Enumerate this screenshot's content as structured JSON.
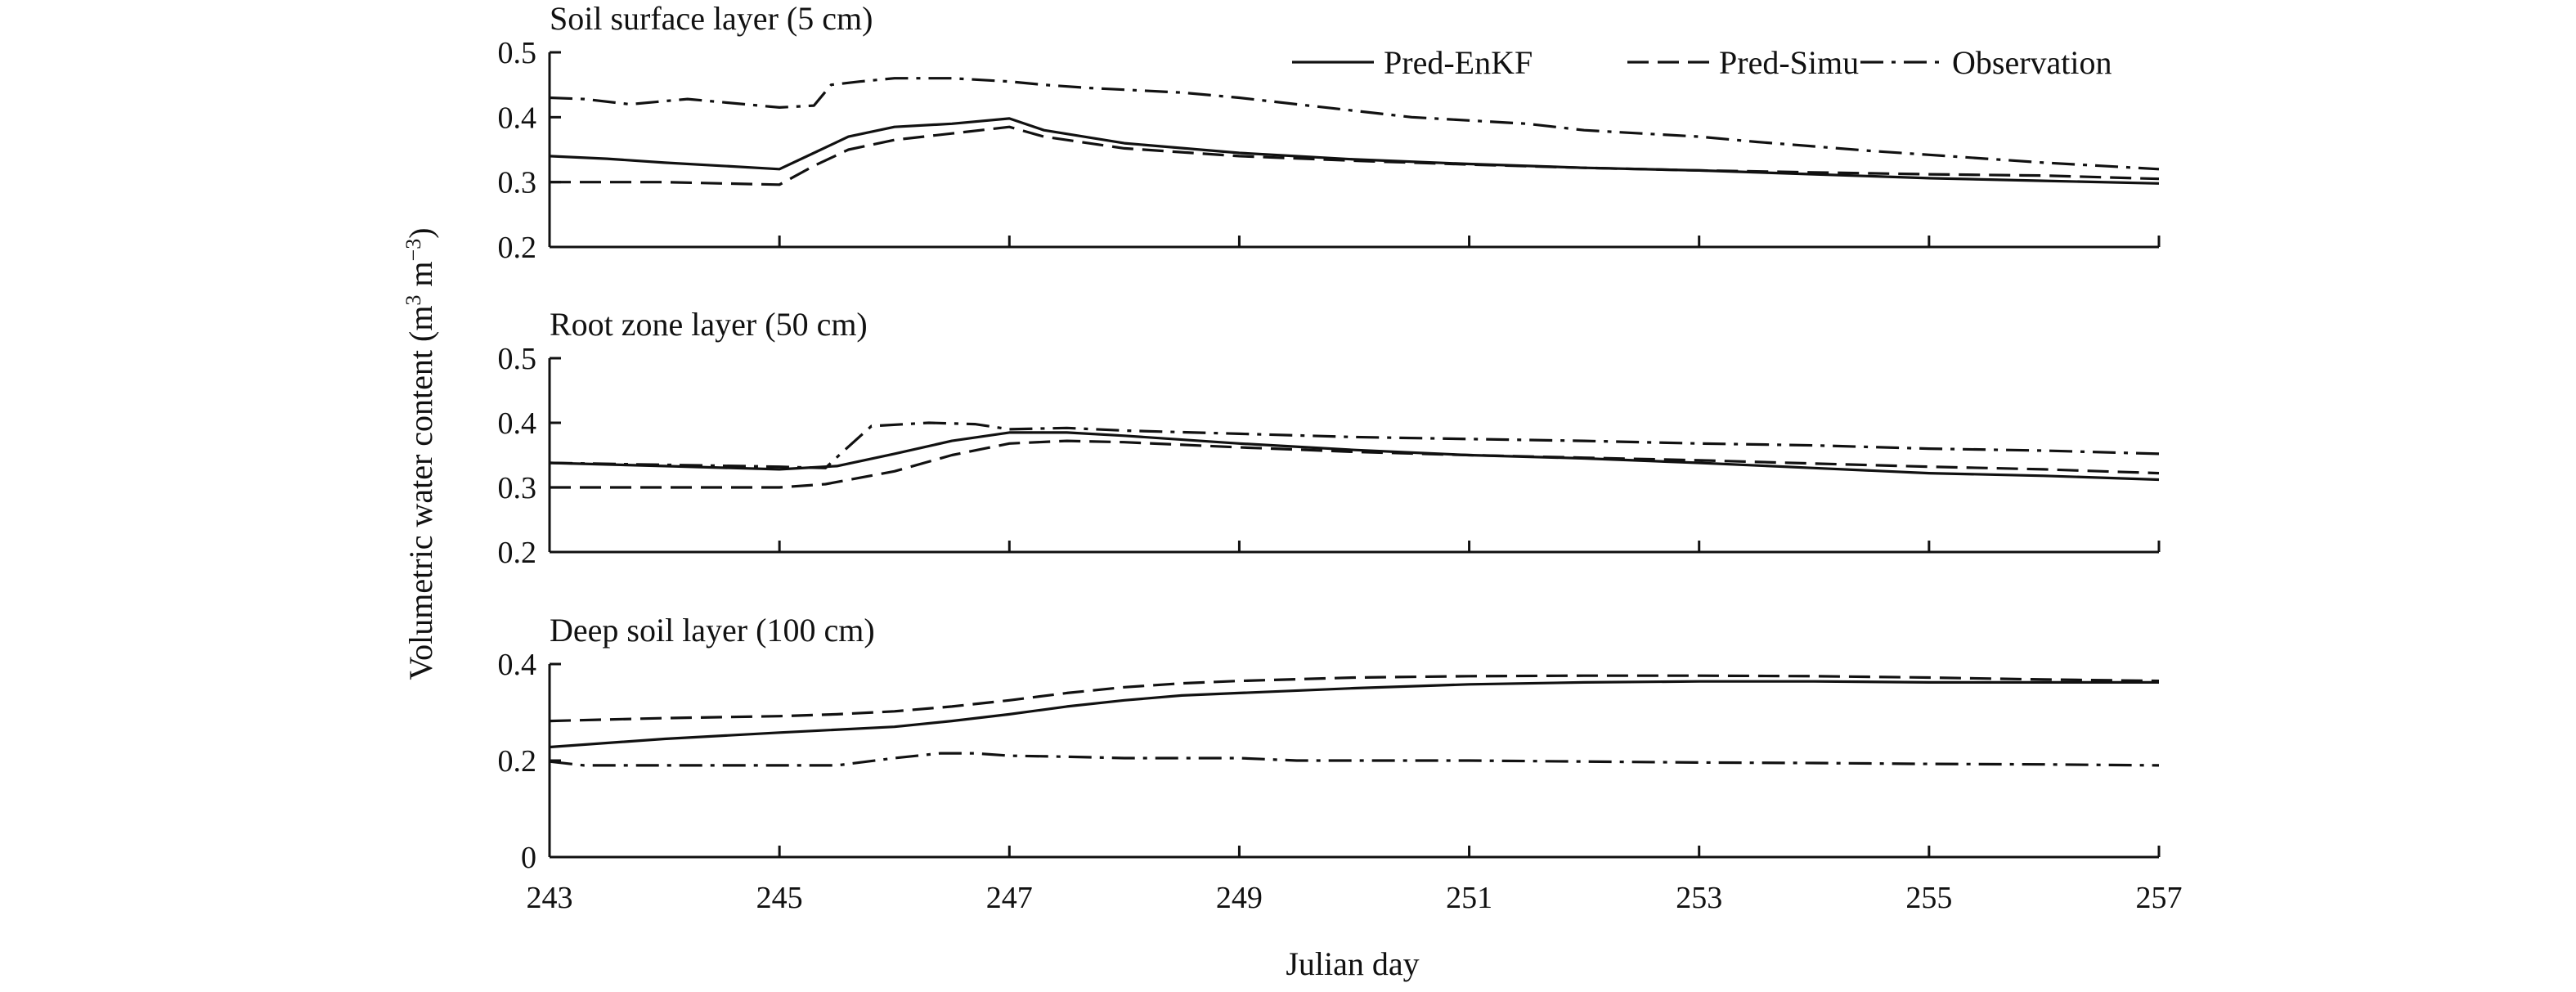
{
  "chart_data": {
    "type": "line",
    "ylabel_main": "Volumetric water content (m",
    "ylabel_sup1": "3",
    "ylabel_mid": " m",
    "ylabel_sup2": "−3",
    "ylabel_end": ")",
    "xlabel": "Julian day",
    "xlim": [
      243,
      257
    ],
    "xticks": [
      243,
      245,
      247,
      249,
      251,
      253,
      255,
      257
    ],
    "legend": [
      {
        "name": "Pred-EnKF",
        "style": "solid"
      },
      {
        "name": "Pred-Simu",
        "style": "dashed"
      },
      {
        "name": "Observation",
        "style": "dashdot"
      }
    ],
    "legend_position": "top-right",
    "colors": {
      "line": "#111111"
    },
    "panels": [
      {
        "title": "Soil surface layer (5 cm)",
        "ylim": [
          0.2,
          0.5
        ],
        "yticks": [
          0.2,
          0.3,
          0.4,
          0.5
        ],
        "ytick_labels": [
          "0.2",
          "0.3",
          "0.4",
          "0.5"
        ],
        "series": [
          {
            "name": "Pred-EnKF",
            "x": [
              243,
              243.5,
              244,
              244.5,
              245,
              245.3,
              245.6,
              246,
              246.5,
              247,
              247.3,
              248,
              249,
              250,
              251,
              252,
              253,
              254,
              255,
              256,
              257
            ],
            "y": [
              0.34,
              0.336,
              0.33,
              0.325,
              0.32,
              0.345,
              0.37,
              0.385,
              0.39,
              0.398,
              0.38,
              0.36,
              0.345,
              0.335,
              0.328,
              0.322,
              0.318,
              0.312,
              0.306,
              0.302,
              0.298
            ]
          },
          {
            "name": "Pred-Simu",
            "x": [
              243,
              244,
              244.5,
              245,
              245.3,
              245.6,
              246,
              246.5,
              247,
              247.3,
              248,
              249,
              250,
              251,
              252,
              253,
              254,
              255,
              256,
              257
            ],
            "y": [
              0.3,
              0.3,
              0.298,
              0.296,
              0.325,
              0.35,
              0.365,
              0.375,
              0.385,
              0.37,
              0.352,
              0.34,
              0.333,
              0.327,
              0.322,
              0.318,
              0.315,
              0.312,
              0.31,
              0.305
            ]
          },
          {
            "name": "Observation",
            "x": [
              243,
              243.3,
              243.7,
              244.2,
              244.7,
              245,
              245.3,
              245.45,
              245.7,
              246,
              246.5,
              247,
              247.3,
              247.7,
              248.5,
              249,
              249.5,
              250,
              250.5,
              251,
              251.5,
              252,
              252.5,
              253,
              253.5,
              254,
              254.5,
              255,
              255.5,
              256,
              256.5,
              257
            ],
            "y": [
              0.43,
              0.428,
              0.42,
              0.428,
              0.42,
              0.415,
              0.418,
              0.45,
              0.455,
              0.46,
              0.46,
              0.455,
              0.45,
              0.445,
              0.438,
              0.43,
              0.42,
              0.41,
              0.4,
              0.395,
              0.39,
              0.38,
              0.375,
              0.37,
              0.362,
              0.355,
              0.348,
              0.342,
              0.336,
              0.33,
              0.325,
              0.32
            ]
          }
        ]
      },
      {
        "title": "Root zone layer (50 cm)",
        "ylim": [
          0.2,
          0.5
        ],
        "yticks": [
          0.2,
          0.3,
          0.4,
          0.5
        ],
        "ytick_labels": [
          "0.2",
          "0.3",
          "0.4",
          "0.5"
        ],
        "series": [
          {
            "name": "Pred-EnKF",
            "x": [
              243,
              244,
              245,
              245.5,
              246,
              246.5,
              247,
              247.5,
              248,
              249,
              250,
              251,
              252,
              253,
              254,
              255,
              256,
              257
            ],
            "y": [
              0.338,
              0.333,
              0.328,
              0.333,
              0.352,
              0.372,
              0.385,
              0.385,
              0.38,
              0.368,
              0.358,
              0.35,
              0.345,
              0.338,
              0.33,
              0.322,
              0.318,
              0.312
            ]
          },
          {
            "name": "Pred-Simu",
            "x": [
              243,
              244,
              245,
              245.4,
              246,
              246.5,
              247,
              247.5,
              248,
              249,
              250,
              251,
              252,
              253,
              254,
              255,
              256,
              257
            ],
            "y": [
              0.3,
              0.3,
              0.3,
              0.305,
              0.325,
              0.35,
              0.368,
              0.372,
              0.37,
              0.362,
              0.355,
              0.35,
              0.346,
              0.342,
              0.337,
              0.332,
              0.328,
              0.322
            ]
          },
          {
            "name": "Observation",
            "x": [
              243,
              244,
              245,
              245.4,
              245.55,
              245.8,
              246.3,
              246.7,
              247,
              247.5,
              248,
              249,
              250,
              251,
              252,
              253,
              254,
              255,
              256,
              257
            ],
            "y": [
              0.338,
              0.335,
              0.332,
              0.33,
              0.355,
              0.395,
              0.4,
              0.398,
              0.39,
              0.392,
              0.388,
              0.383,
              0.378,
              0.375,
              0.372,
              0.368,
              0.365,
              0.36,
              0.357,
              0.352
            ]
          }
        ]
      },
      {
        "title": "Deep soil layer (100 cm)",
        "ylim": [
          0,
          0.4
        ],
        "yticks": [
          0,
          0.2,
          0.4
        ],
        "ytick_labels": [
          "0",
          "0.2",
          "0.4"
        ],
        "series": [
          {
            "name": "Pred-EnKF",
            "x": [
              243,
              244,
              245,
              246,
              246.5,
              247,
              247.5,
              248,
              248.5,
              249,
              250,
              251,
              252,
              253,
              254,
              255,
              256,
              257
            ],
            "y": [
              0.228,
              0.245,
              0.258,
              0.27,
              0.282,
              0.296,
              0.312,
              0.325,
              0.335,
              0.34,
              0.35,
              0.358,
              0.362,
              0.364,
              0.364,
              0.362,
              0.362,
              0.362
            ]
          },
          {
            "name": "Pred-Simu",
            "x": [
              243,
              244,
              245,
              245.5,
              246,
              246.5,
              247,
              247.5,
              248,
              248.5,
              249,
              250,
              251,
              252,
              253,
              254,
              255,
              256,
              257
            ],
            "y": [
              0.282,
              0.288,
              0.292,
              0.296,
              0.302,
              0.312,
              0.325,
              0.34,
              0.352,
              0.36,
              0.365,
              0.372,
              0.375,
              0.376,
              0.376,
              0.375,
              0.372,
              0.368,
              0.365
            ]
          },
          {
            "name": "Observation",
            "x": [
              243,
              243.3,
              244,
              245,
              245.5,
              246,
              246.4,
              246.7,
              247,
              247.5,
              248,
              249,
              249.5,
              250,
              251,
              252,
              253,
              254,
              255,
              256,
              257
            ],
            "y": [
              0.198,
              0.19,
              0.19,
              0.19,
              0.19,
              0.205,
              0.215,
              0.215,
              0.21,
              0.208,
              0.205,
              0.205,
              0.2,
              0.2,
              0.2,
              0.198,
              0.196,
              0.195,
              0.193,
              0.192,
              0.19
            ]
          }
        ]
      }
    ]
  }
}
